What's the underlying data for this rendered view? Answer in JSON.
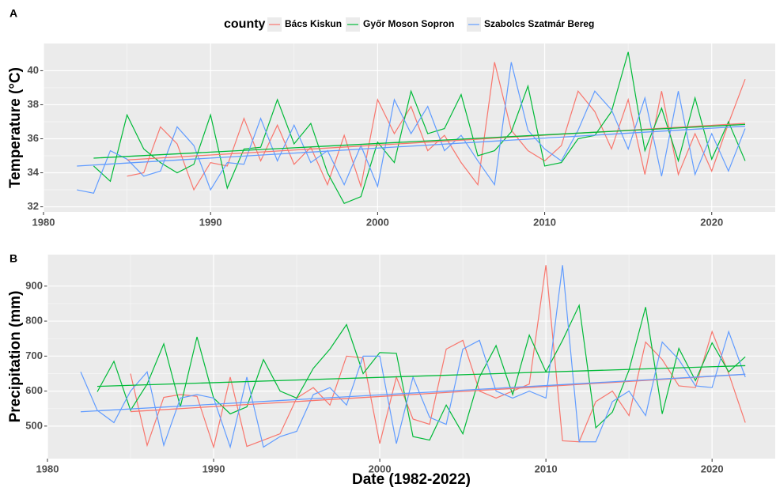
{
  "chart_data": [
    {
      "type": "line",
      "tag": "A",
      "legend_title": "county",
      "ylabel": "Temperature (°C)",
      "x": [
        1982,
        1983,
        1984,
        1985,
        1986,
        1987,
        1988,
        1989,
        1990,
        1991,
        1992,
        1993,
        1994,
        1995,
        1996,
        1997,
        1998,
        1999,
        2000,
        2001,
        2002,
        2003,
        2004,
        2005,
        2006,
        2007,
        2008,
        2009,
        2010,
        2011,
        2012,
        2013,
        2014,
        2015,
        2016,
        2017,
        2018,
        2019,
        2020,
        2021,
        2022
      ],
      "xlim": [
        1980,
        2023.8
      ],
      "xticks": [
        1980,
        1990,
        2000,
        2010,
        2020
      ],
      "ylim": [
        31.7,
        41.6
      ],
      "yticks": [
        32,
        34,
        36,
        38,
        40
      ],
      "grid": true,
      "trend": true,
      "legend": "top",
      "series": [
        {
          "name": "Bács Kiskun",
          "color": "#F8766D",
          "values": [
            null,
            null,
            null,
            33.8,
            34.0,
            36.7,
            35.7,
            33.0,
            34.6,
            34.4,
            37.2,
            34.7,
            36.8,
            34.5,
            35.5,
            33.3,
            36.2,
            33.2,
            38.3,
            36.3,
            37.9,
            35.3,
            36.2,
            34.6,
            33.3,
            40.5,
            36.5,
            35.3,
            34.7,
            35.6,
            38.8,
            37.6,
            35.4,
            38.3,
            33.9,
            38.8,
            33.9,
            36.3,
            34.1,
            36.9,
            39.5
          ]
        },
        {
          "name": "Győr Moson Sopron",
          "color": "#00BA38",
          "values": [
            null,
            34.4,
            33.5,
            37.4,
            35.4,
            34.6,
            34.0,
            34.5,
            37.4,
            33.1,
            35.4,
            35.5,
            38.3,
            35.7,
            36.9,
            34.0,
            32.2,
            32.6,
            35.8,
            34.6,
            38.8,
            36.3,
            36.6,
            38.6,
            35.0,
            35.3,
            36.4,
            39.1,
            34.4,
            34.6,
            36.0,
            36.2,
            37.6,
            41.1,
            35.3,
            37.8,
            34.7,
            38.4,
            34.8,
            37.0,
            34.7
          ]
        },
        {
          "name": "Szabolcs Szatmár Bereg",
          "color": "#619CFF",
          "values": [
            33.0,
            32.8,
            35.3,
            34.8,
            33.8,
            34.1,
            36.7,
            35.6,
            33.0,
            34.6,
            34.5,
            37.2,
            34.7,
            36.8,
            34.6,
            35.3,
            33.3,
            35.6,
            33.2,
            38.3,
            36.3,
            37.9,
            35.3,
            36.2,
            34.7,
            33.3,
            40.5,
            36.5,
            35.4,
            34.7,
            36.5,
            38.8,
            37.7,
            35.4,
            38.4,
            33.8,
            38.8,
            33.9,
            36.3,
            34.1,
            36.6
          ]
        }
      ]
    },
    {
      "type": "line",
      "tag": "B",
      "ylabel": "Precipitation (mm)",
      "xlabel": "Date (1982-2022)",
      "x": [
        1982,
        1983,
        1984,
        1985,
        1986,
        1987,
        1988,
        1989,
        1990,
        1991,
        1992,
        1993,
        1994,
        1995,
        1996,
        1997,
        1998,
        1999,
        2000,
        2001,
        2002,
        2003,
        2004,
        2005,
        2006,
        2007,
        2008,
        2009,
        2010,
        2011,
        2012,
        2013,
        2014,
        2015,
        2016,
        2017,
        2018,
        2019,
        2020,
        2021,
        2022
      ],
      "xlim": [
        1980,
        2023.8
      ],
      "xticks": [
        1980,
        1990,
        2000,
        2010,
        2020
      ],
      "ylim": [
        407,
        990
      ],
      "yticks": [
        500,
        600,
        700,
        800,
        900
      ],
      "grid": true,
      "trend": true,
      "series": [
        {
          "name": "Bács Kiskun",
          "color": "#F8766D",
          "values": [
            null,
            null,
            null,
            650,
            445,
            582,
            590,
            585,
            440,
            640,
            442,
            460,
            478,
            580,
            610,
            560,
            700,
            695,
            450,
            640,
            520,
            505,
            720,
            745,
            600,
            580,
            600,
            620,
            960,
            458,
            455,
            570,
            600,
            530,
            740,
            690,
            615,
            610,
            770,
            650,
            510
          ]
        },
        {
          "name": "Győr Moson Sopron",
          "color": "#00BA38",
          "values": [
            null,
            598,
            685,
            545,
            620,
            735,
            555,
            755,
            580,
            535,
            555,
            690,
            600,
            580,
            665,
            720,
            790,
            650,
            710,
            708,
            470,
            460,
            560,
            478,
            640,
            730,
            590,
            760,
            655,
            745,
            845,
            495,
            540,
            660,
            840,
            535,
            722,
            630,
            738,
            655,
            698
          ]
        },
        {
          "name": "Szabolcs Szatmár Bereg",
          "color": "#619CFF",
          "values": [
            655,
            545,
            510,
            600,
            655,
            445,
            580,
            590,
            580,
            440,
            640,
            440,
            470,
            485,
            590,
            610,
            560,
            700,
            700,
            450,
            640,
            525,
            505,
            720,
            745,
            600,
            580,
            600,
            580,
            960,
            455,
            455,
            570,
            600,
            530,
            740,
            690,
            615,
            610,
            770,
            640
          ]
        }
      ]
    }
  ]
}
